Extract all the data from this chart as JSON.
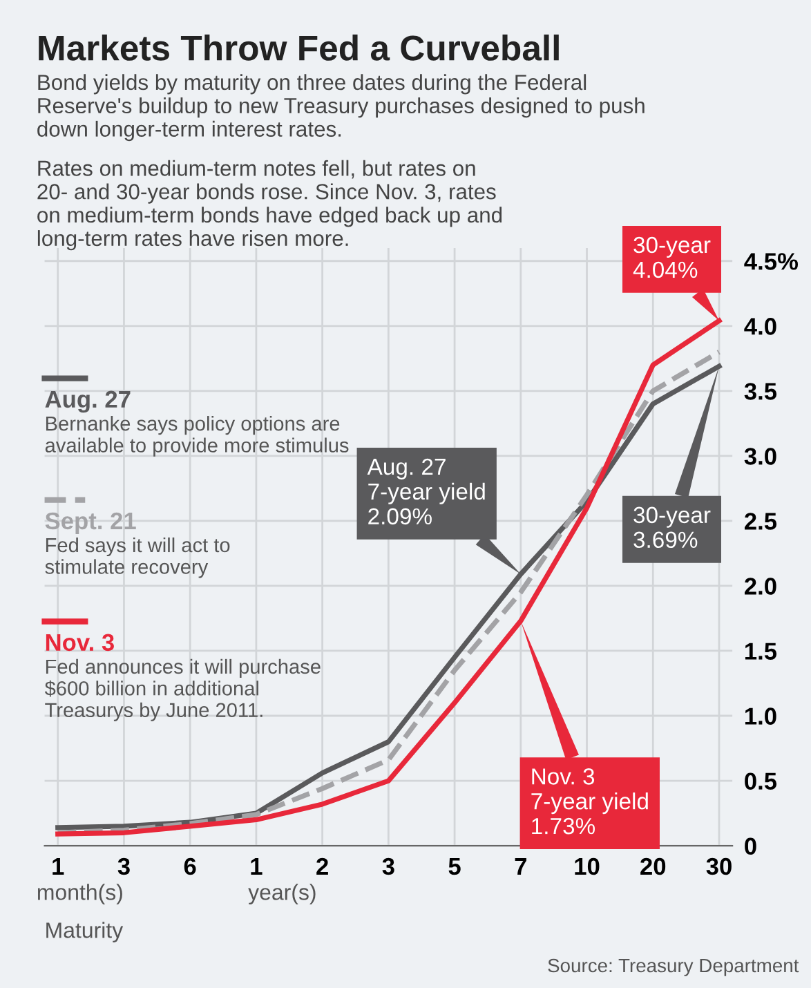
{
  "chart_data": {
    "type": "line",
    "title": "Markets Throw Fed a Curveball",
    "subtitle": "Bond yields by maturity on three dates during the Federal\nReserve's buildup to new Treasury purchases designed to push\ndown longer-term interest rates.\nRates on medium-term notes fell, but rates on\n20- and 30-year bonds rose. Since Nov. 3, rates\non medium-term bonds have edged back up and\nlong-term rates have risen more.",
    "xlabel": "Maturity",
    "categories": [
      "1",
      "3",
      "6",
      "1",
      "2",
      "3",
      "5",
      "7",
      "10",
      "20",
      "30"
    ],
    "series": [
      {
        "name": "Aug. 27",
        "color": "#5a5a5c",
        "line_style": "solid",
        "values": [
          0.14,
          0.15,
          0.18,
          0.25,
          0.56,
          0.8,
          1.45,
          2.09,
          2.65,
          3.4,
          3.69
        ]
      },
      {
        "name": "Sept. 21",
        "color": "#a3a3a6",
        "line_style": "dashed",
        "values": [
          0.1,
          0.12,
          0.17,
          0.24,
          0.44,
          0.66,
          1.35,
          1.95,
          2.7,
          3.5,
          3.8
        ]
      },
      {
        "name": "Nov. 3",
        "color": "#e8283a",
        "line_style": "solid",
        "values": [
          0.09,
          0.1,
          0.15,
          0.2,
          0.32,
          0.5,
          1.1,
          1.73,
          2.6,
          3.7,
          4.04
        ]
      }
    ],
    "ylim": [
      0,
      4.6
    ],
    "yticks": [
      0,
      0.5,
      {
        "value": 1.0,
        "label": "1.0"
      },
      1.5,
      {
        "value": 2.0,
        "label": "2.0"
      },
      2.5,
      {
        "value": 3.0,
        "label": "3.0"
      },
      3.5,
      {
        "value": 4.0,
        "label": "4.0"
      },
      {
        "value": 4.5,
        "label": "4.5%"
      }
    ],
    "grid": true,
    "legend": "left",
    "annotations": [
      {
        "text": "Aug. 27\n7-year yield\n2.09%",
        "x": "7",
        "y": 2.09
      },
      {
        "text": "Nov. 3\n7-year yield\n1.73%",
        "x": "7",
        "y": 1.73
      },
      {
        "text": "30-year\n3.69%",
        "x": "30",
        "y": 3.69
      },
      {
        "text": "30-year\n4.04%",
        "x": "30",
        "y": 4.04
      },
      "Bernanke says policy options are\navailable to provide more stimulus",
      "Fed says it will act to\nstimulate recovery",
      "Fed announces it will purchase\n$600 billion in additional\nTreasurys by June 2011.",
      "month(s)",
      "year(s)",
      "Source: Treasury Department"
    ]
  }
}
